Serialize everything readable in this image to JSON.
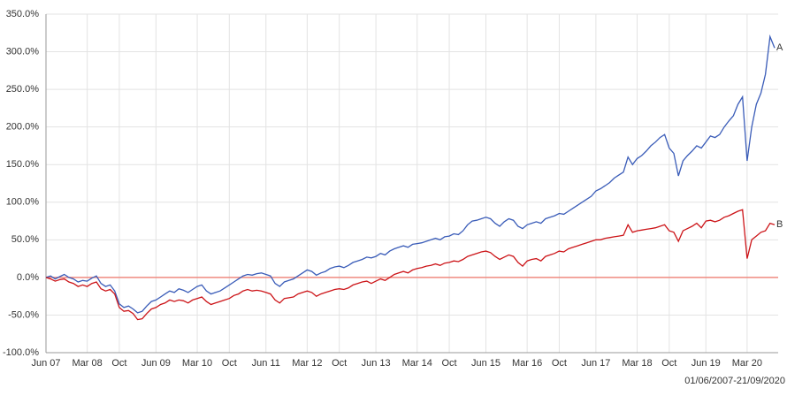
{
  "chart_data": {
    "type": "line",
    "footnote": "01/06/2007-21/09/2020",
    "categories": [
      "Jun 07",
      null,
      null,
      null,
      null,
      null,
      null,
      null,
      null,
      "Mar 08",
      null,
      null,
      null,
      null,
      null,
      null,
      "Oct",
      null,
      null,
      null,
      null,
      null,
      null,
      null,
      "Jun 09",
      null,
      null,
      null,
      null,
      null,
      null,
      null,
      null,
      "Mar 10",
      null,
      null,
      null,
      null,
      null,
      null,
      "Oct",
      null,
      null,
      null,
      null,
      null,
      null,
      null,
      "Jun 11",
      null,
      null,
      null,
      null,
      null,
      null,
      null,
      null,
      "Mar 12",
      null,
      null,
      null,
      null,
      null,
      null,
      "Oct",
      null,
      null,
      null,
      null,
      null,
      null,
      null,
      "Jun 13",
      null,
      null,
      null,
      null,
      null,
      null,
      null,
      null,
      "Mar 14",
      null,
      null,
      null,
      null,
      null,
      null,
      "Oct",
      null,
      null,
      null,
      null,
      null,
      null,
      null,
      "Jun 15",
      null,
      null,
      null,
      null,
      null,
      null,
      null,
      null,
      "Mar 16",
      null,
      null,
      null,
      null,
      null,
      null,
      "Oct",
      null,
      null,
      null,
      null,
      null,
      null,
      null,
      "Jun 17",
      null,
      null,
      null,
      null,
      null,
      null,
      null,
      null,
      "Mar 18",
      null,
      null,
      null,
      null,
      null,
      null,
      "Oct",
      null,
      null,
      null,
      null,
      null,
      null,
      null,
      "Jun 19",
      null,
      null,
      null,
      null,
      null,
      null,
      null,
      null,
      "Mar 20",
      null,
      null,
      null,
      null,
      null,
      null
    ],
    "series": [
      {
        "name": "A",
        "color": "#3a5cb8",
        "values": [
          0,
          2,
          -2,
          1,
          4,
          0,
          -2,
          -6,
          -4,
          -5,
          -1,
          2,
          -8,
          -12,
          -10,
          -18,
          -35,
          -40,
          -38,
          -42,
          -47,
          -45,
          -38,
          -32,
          -30,
          -26,
          -22,
          -18,
          -20,
          -15,
          -17,
          -20,
          -16,
          -12,
          -10,
          -18,
          -22,
          -20,
          -18,
          -14,
          -10,
          -6,
          -2,
          2,
          4,
          3,
          5,
          6,
          4,
          2,
          -8,
          -12,
          -6,
          -4,
          -2,
          2,
          6,
          10,
          8,
          3,
          6,
          8,
          12,
          14,
          15,
          13,
          16,
          20,
          22,
          24,
          27,
          26,
          28,
          32,
          30,
          35,
          38,
          40,
          42,
          40,
          44,
          45,
          46,
          48,
          50,
          52,
          50,
          54,
          55,
          58,
          57,
          62,
          70,
          75,
          76,
          78,
          80,
          78,
          72,
          68,
          74,
          78,
          76,
          68,
          65,
          70,
          72,
          74,
          72,
          78,
          80,
          82,
          85,
          84,
          88,
          92,
          96,
          100,
          104,
          108,
          115,
          118,
          122,
          126,
          132,
          136,
          140,
          160,
          150,
          158,
          162,
          168,
          175,
          180,
          186,
          190,
          172,
          165,
          135,
          155,
          162,
          168,
          175,
          172,
          180,
          188,
          186,
          190,
          200,
          208,
          215,
          230,
          240,
          155,
          200,
          230,
          245,
          270,
          320,
          305
        ]
      },
      {
        "name": "B",
        "color": "#cc1418",
        "values": [
          0,
          -2,
          -5,
          -3,
          -2,
          -6,
          -8,
          -12,
          -10,
          -12,
          -8,
          -6,
          -15,
          -18,
          -16,
          -22,
          -40,
          -45,
          -44,
          -48,
          -56,
          -55,
          -48,
          -42,
          -40,
          -36,
          -34,
          -30,
          -32,
          -30,
          -31,
          -34,
          -30,
          -28,
          -26,
          -32,
          -36,
          -34,
          -32,
          -30,
          -28,
          -24,
          -22,
          -18,
          -16,
          -18,
          -17,
          -18,
          -20,
          -22,
          -30,
          -34,
          -28,
          -27,
          -26,
          -22,
          -20,
          -18,
          -20,
          -25,
          -22,
          -20,
          -18,
          -16,
          -15,
          -16,
          -14,
          -10,
          -8,
          -6,
          -5,
          -8,
          -5,
          -2,
          -4,
          0,
          4,
          6,
          8,
          6,
          10,
          12,
          13,
          15,
          16,
          18,
          16,
          19,
          20,
          22,
          21,
          24,
          28,
          30,
          32,
          34,
          35,
          33,
          28,
          24,
          27,
          30,
          28,
          20,
          15,
          22,
          24,
          25,
          22,
          28,
          30,
          32,
          35,
          34,
          38,
          40,
          42,
          44,
          46,
          48,
          50,
          50,
          52,
          53,
          54,
          55,
          56,
          70,
          60,
          62,
          63,
          64,
          65,
          66,
          68,
          70,
          62,
          60,
          48,
          62,
          65,
          68,
          72,
          66,
          75,
          76,
          74,
          76,
          80,
          82,
          85,
          88,
          90,
          25,
          50,
          55,
          60,
          62,
          72,
          70
        ]
      }
    ],
    "ylim": [
      -100,
      350
    ],
    "yticks": [
      {
        "value": -100,
        "label": "-100.0%"
      },
      {
        "value": -50,
        "label": "-50.0%"
      },
      {
        "value": 0,
        "label": "0.0%"
      },
      {
        "value": 50,
        "label": "50.0%"
      },
      {
        "value": 100,
        "label": "100.0%"
      },
      {
        "value": 150,
        "label": "150.0%"
      },
      {
        "value": 200,
        "label": "200.0%"
      },
      {
        "value": 250,
        "label": "250.0%"
      },
      {
        "value": 300,
        "label": "300.0%"
      },
      {
        "value": 350,
        "label": "350.0%"
      }
    ],
    "grid": true,
    "zero_line_color": "#f08a80"
  }
}
